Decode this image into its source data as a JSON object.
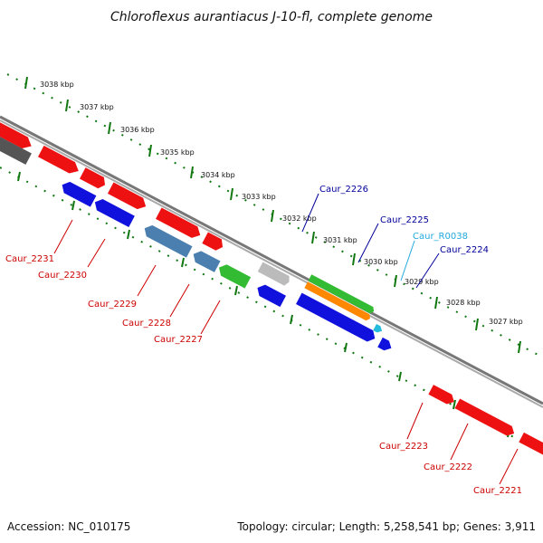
{
  "title": "Chloroflexus aurantiacus J-10-fl, complete genome",
  "footer": {
    "accession": "Accession: NC_010175",
    "stats": "Topology: circular; Length: 5,258,541 bp; Genes: 3,911"
  },
  "colors": {
    "red": "#ee1111",
    "blue": "#1111dd",
    "steel": "#4a7fb0",
    "green": "#33bb33",
    "orange": "#ff8800",
    "gray": "#555555",
    "lightgray": "#bbbbbb",
    "cyan": "#22bbdd",
    "backbone": "#777777",
    "ruler": "#117711",
    "label_red": "#cc0000",
    "label_blue": "#000099",
    "label_cyan": "#22aadd"
  },
  "scale_labels": [
    "3038 kbp",
    "3037 kbp",
    "3036 kbp",
    "3035 kbp",
    "3034 kbp",
    "3033 kbp",
    "3032 kbp",
    "3031 kbp",
    "3030 kbp",
    "3029 kbp",
    "3028 kbp",
    "3027 kbp"
  ],
  "gene_labels": [
    {
      "name": "Caur_2226",
      "color": "label_blue"
    },
    {
      "name": "Caur_2225",
      "color": "label_blue"
    },
    {
      "name": "Caur_R0038",
      "color": "label_cyan"
    },
    {
      "name": "Caur_2224",
      "color": "label_blue"
    },
    {
      "name": "Caur_2231",
      "color": "label_red"
    },
    {
      "name": "Caur_2230",
      "color": "label_red"
    },
    {
      "name": "Caur_2229",
      "color": "label_red"
    },
    {
      "name": "Caur_2228",
      "color": "label_red"
    },
    {
      "name": "Caur_2227",
      "color": "label_red"
    },
    {
      "name": "Caur_2223",
      "color": "label_red"
    },
    {
      "name": "Caur_2222",
      "color": "label_red"
    },
    {
      "name": "Caur_2221",
      "color": "label_red"
    }
  ]
}
